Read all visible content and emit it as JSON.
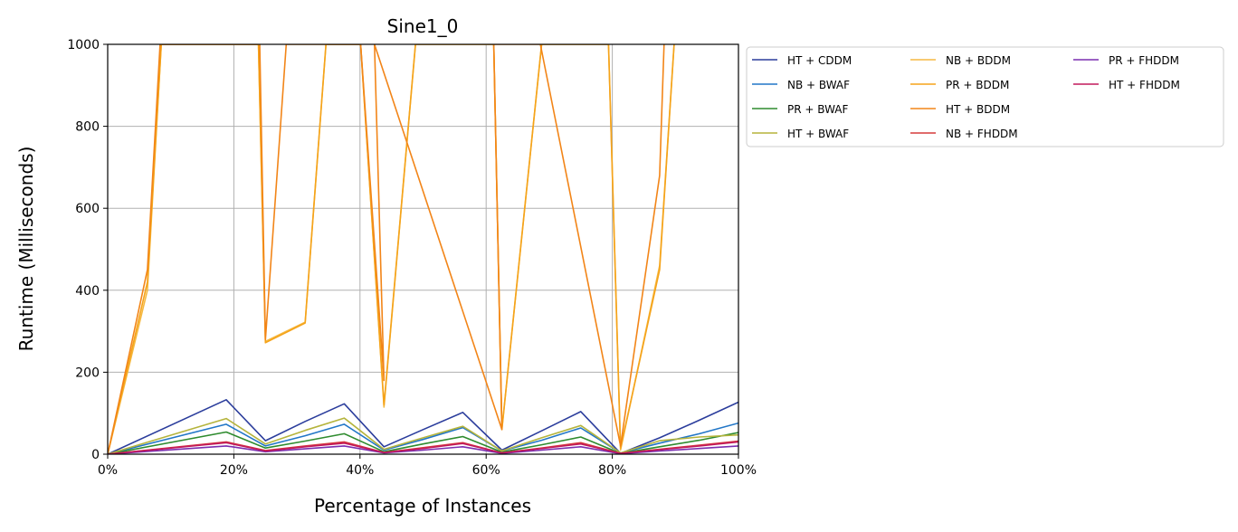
{
  "chart_data": {
    "type": "line",
    "title": "Sine1_0",
    "xlabel": "Percentage of Instances",
    "ylabel": "Runtime (Milliseconds)",
    "xlim": [
      0,
      100
    ],
    "ylim": [
      0,
      1000
    ],
    "x_ticks": [
      0,
      20,
      40,
      60,
      80,
      100
    ],
    "x_tick_labels": [
      "0%",
      "20%",
      "40%",
      "60%",
      "80%",
      "100%"
    ],
    "y_ticks": [
      0,
      200,
      400,
      600,
      800,
      1000
    ],
    "y_tick_labels": [
      "0",
      "200",
      "400",
      "600",
      "800",
      "1000"
    ],
    "grid": true,
    "legend_position": "outside-top-right",
    "series": [
      {
        "name": "HT + CDDM",
        "color": "#2b3d9c",
        "points": [
          [
            0,
            0
          ],
          [
            18.8,
            133
          ],
          [
            25,
            33
          ],
          [
            31.3,
            80
          ],
          [
            37.5,
            123
          ],
          [
            43.8,
            18
          ],
          [
            50,
            60
          ],
          [
            56.3,
            102
          ],
          [
            62.5,
            10
          ],
          [
            68.8,
            57
          ],
          [
            75,
            104
          ],
          [
            81.3,
            2
          ],
          [
            87.5,
            40
          ],
          [
            93.8,
            83
          ],
          [
            100,
            127
          ]
        ]
      },
      {
        "name": "NB + BWAF",
        "color": "#2176c7",
        "points": [
          [
            0,
            0
          ],
          [
            18.8,
            73
          ],
          [
            25,
            20
          ],
          [
            31.3,
            45
          ],
          [
            37.5,
            73
          ],
          [
            43.8,
            10
          ],
          [
            50,
            36
          ],
          [
            56.3,
            65
          ],
          [
            62.5,
            8
          ],
          [
            68.8,
            34
          ],
          [
            75,
            64
          ],
          [
            81.3,
            3
          ],
          [
            87.5,
            27
          ],
          [
            93.8,
            50
          ],
          [
            100,
            76
          ]
        ]
      },
      {
        "name": "PR + BWAF",
        "color": "#2e8b2e",
        "points": [
          [
            0,
            0
          ],
          [
            18.8,
            54
          ],
          [
            25,
            15
          ],
          [
            31.3,
            32
          ],
          [
            37.5,
            50
          ],
          [
            43.8,
            6
          ],
          [
            50,
            25
          ],
          [
            56.3,
            43
          ],
          [
            62.5,
            5
          ],
          [
            68.8,
            23
          ],
          [
            75,
            42
          ],
          [
            81.3,
            2
          ],
          [
            87.5,
            18
          ],
          [
            93.8,
            34
          ],
          [
            100,
            53
          ]
        ]
      },
      {
        "name": "HT + BWAF",
        "color": "#b5b43c",
        "points": [
          [
            0,
            0
          ],
          [
            18.8,
            87
          ],
          [
            25,
            25
          ],
          [
            31.3,
            58
          ],
          [
            37.5,
            88
          ],
          [
            43.8,
            12
          ],
          [
            50,
            40
          ],
          [
            56.3,
            68
          ],
          [
            62.5,
            8
          ],
          [
            68.8,
            40
          ],
          [
            75,
            70
          ],
          [
            81.3,
            3
          ],
          [
            87.5,
            33
          ],
          [
            93.8,
            42
          ],
          [
            100,
            47
          ]
        ]
      },
      {
        "name": "NB + BDDM",
        "color": "#f5b942",
        "points": [
          [
            0,
            0
          ],
          [
            6.3,
            400
          ],
          [
            8.5,
            1000
          ],
          [
            23.9,
            1000
          ],
          [
            25,
            275
          ],
          [
            31.3,
            322
          ],
          [
            34.6,
            1000
          ],
          [
            40.1,
            1000
          ],
          [
            43.8,
            115
          ],
          [
            48.8,
            1000
          ],
          [
            61.2,
            1000
          ],
          [
            62.5,
            62
          ],
          [
            68.8,
            1000
          ],
          [
            79.4,
            1000
          ],
          [
            81.3,
            10
          ],
          [
            87.5,
            460
          ],
          [
            89.8,
            1000
          ]
        ]
      },
      {
        "name": "PR + BDDM",
        "color": "#f5a31a",
        "points": [
          [
            0,
            0
          ],
          [
            6.3,
            420
          ],
          [
            8.5,
            1000
          ],
          [
            23.9,
            1000
          ],
          [
            25,
            272
          ],
          [
            31.3,
            320
          ],
          [
            34.6,
            1000
          ],
          [
            40.1,
            1000
          ],
          [
            43.8,
            120
          ],
          [
            48.8,
            1000
          ],
          [
            61.2,
            1000
          ],
          [
            62.5,
            60
          ],
          [
            68.8,
            1000
          ],
          [
            79.4,
            1000
          ],
          [
            81.3,
            15
          ],
          [
            87.5,
            450
          ],
          [
            89.8,
            1000
          ]
        ]
      },
      {
        "name": "HT + BDDM",
        "color": "#f28518",
        "points": [
          [
            0,
            0
          ],
          [
            6.3,
            450
          ],
          [
            8.3,
            1000
          ],
          [
            24.1,
            1000
          ],
          [
            25,
            280
          ],
          [
            28.3,
            1000
          ],
          [
            40.1,
            1000
          ],
          [
            43.8,
            180
          ],
          [
            42.3,
            1000
          ],
          [
            62.5,
            60
          ],
          [
            61.2,
            1000
          ],
          [
            68.6,
            1000
          ],
          [
            81.3,
            20
          ],
          [
            87.5,
            680
          ],
          [
            88.2,
            1000
          ]
        ]
      },
      {
        "name": "NB + FHDDM",
        "color": "#d63b3b",
        "points": [
          [
            0,
            0
          ],
          [
            18.8,
            30
          ],
          [
            25,
            9
          ],
          [
            31.3,
            20
          ],
          [
            37.5,
            30
          ],
          [
            43.8,
            4
          ],
          [
            50,
            16
          ],
          [
            56.3,
            28
          ],
          [
            62.5,
            3
          ],
          [
            68.8,
            15
          ],
          [
            75,
            28
          ],
          [
            81.3,
            2
          ],
          [
            87.5,
            12
          ],
          [
            93.8,
            22
          ],
          [
            100,
            32
          ]
        ]
      },
      {
        "name": "PR + FHDDM",
        "color": "#7a2fb0",
        "points": [
          [
            0,
            0
          ],
          [
            18.8,
            20
          ],
          [
            25,
            6
          ],
          [
            31.3,
            13
          ],
          [
            37.5,
            20
          ],
          [
            43.8,
            3
          ],
          [
            50,
            10
          ],
          [
            56.3,
            18
          ],
          [
            62.5,
            2
          ],
          [
            68.8,
            10
          ],
          [
            75,
            18
          ],
          [
            81.3,
            1
          ],
          [
            87.5,
            8
          ],
          [
            93.8,
            14
          ],
          [
            100,
            20
          ]
        ]
      },
      {
        "name": "HT + FHDDM",
        "color": "#c2185b",
        "points": [
          [
            0,
            0
          ],
          [
            18.8,
            28
          ],
          [
            25,
            8
          ],
          [
            31.3,
            18
          ],
          [
            37.5,
            27
          ],
          [
            43.8,
            4
          ],
          [
            50,
            14
          ],
          [
            56.3,
            26
          ],
          [
            62.5,
            3
          ],
          [
            68.8,
            14
          ],
          [
            75,
            25
          ],
          [
            81.3,
            2
          ],
          [
            87.5,
            11
          ],
          [
            93.8,
            20
          ],
          [
            100,
            30
          ]
        ]
      }
    ]
  }
}
